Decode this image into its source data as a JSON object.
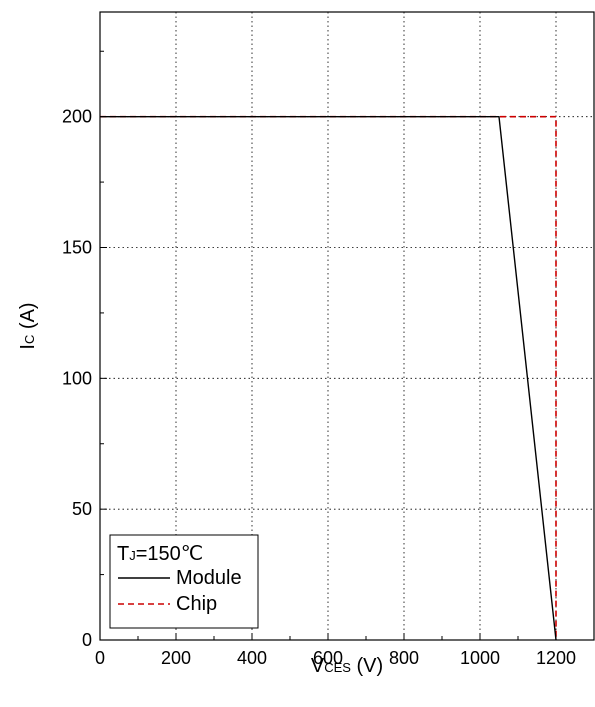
{
  "chart_data": {
    "type": "line",
    "title": "",
    "xlabel": {
      "main": "V",
      "sub": "CES",
      "unit": " (V)"
    },
    "ylabel": {
      "main": "I",
      "sub": "C",
      "unit": " (A)"
    },
    "xlim": [
      0,
      1300
    ],
    "ylim": [
      0,
      240
    ],
    "xticks": [
      0,
      200,
      400,
      600,
      800,
      1000,
      1200
    ],
    "yticks": [
      0,
      50,
      100,
      150,
      200
    ],
    "grid": true,
    "legend": {
      "placement": "bottom-left",
      "title": {
        "main": "T",
        "sub": "J",
        "rest": "=150℃"
      }
    },
    "series": [
      {
        "name": "Module",
        "color": "#000000",
        "style": "solid",
        "x": [
          0,
          1050,
          1200
        ],
        "y": [
          200,
          200,
          0
        ]
      },
      {
        "name": "Chip",
        "color": "#cc0000",
        "style": "dashed",
        "x": [
          0,
          1200,
          1200
        ],
        "y": [
          200,
          200,
          0
        ]
      }
    ]
  }
}
